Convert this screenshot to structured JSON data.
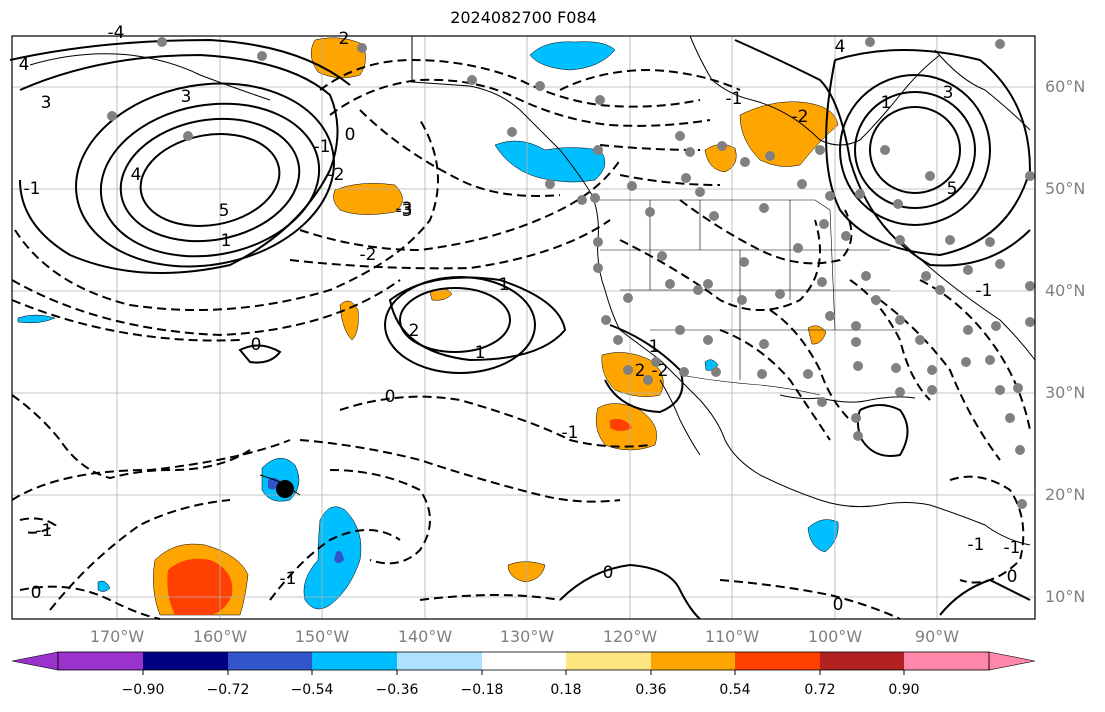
{
  "title": "2024082700 F084",
  "lat_labels": [
    "60°N",
    "50°N",
    "40°N",
    "30°N",
    "20°N",
    "10°N"
  ],
  "lon_labels": [
    "170°W",
    "160°W",
    "150°W",
    "140°W",
    "130°W",
    "120°W",
    "110°W",
    "100°W",
    "90°W"
  ],
  "colorbar": {
    "tick_labels": [
      "−0.90",
      "−0.72",
      "−0.54",
      "−0.36",
      "−0.18",
      "0.18",
      "0.36",
      "0.54",
      "0.72",
      "0.90"
    ],
    "colors": [
      "#9933cc",
      "#000080",
      "#3355cc",
      "#00bfff",
      "#b0e0ff",
      "#ffffff",
      "#ffe680",
      "#ffa500",
      "#ff4000",
      "#b22222",
      "#ff88aa"
    ]
  },
  "contour_labels": {
    "solid": [
      "4",
      "3",
      "3",
      "4",
      "5",
      "1",
      "2",
      "1",
      "2",
      "1",
      "1",
      "4",
      "3",
      "5",
      "1",
      "2",
      "0",
      "0",
      "0",
      "0"
    ],
    "dashed": [
      "-4",
      "-3",
      "-1",
      "-1",
      "0",
      "-1",
      "-2",
      "-3",
      "-2",
      "-1",
      "-2",
      "-1",
      "0",
      "-1",
      "-1",
      "-1",
      "-2",
      "0",
      "-1"
    ]
  },
  "marker": "black-dot"
}
